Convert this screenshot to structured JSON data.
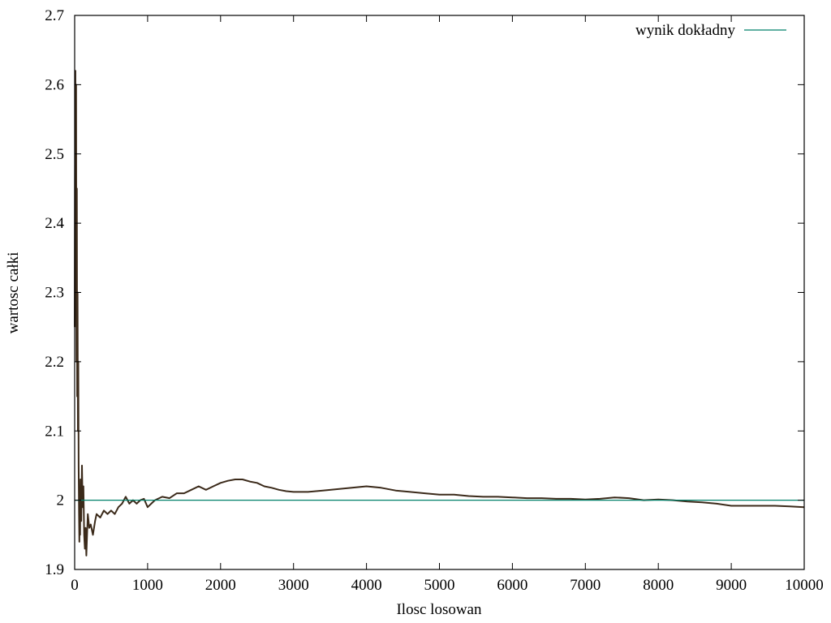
{
  "chart_data": {
    "type": "line",
    "title": "",
    "xlabel": "Ilosc losowan",
    "ylabel": "wartosc całki",
    "xlim": [
      0,
      10000
    ],
    "ylim": [
      1.9,
      2.7
    ],
    "grid": false,
    "legend_position": "top-right",
    "x_ticks": [
      0,
      1000,
      2000,
      3000,
      4000,
      5000,
      6000,
      7000,
      8000,
      9000,
      10000
    ],
    "x_tick_labels": [
      "0",
      "1000",
      "2000",
      "3000",
      "4000",
      "5000",
      "6000",
      "7000",
      "8000",
      "9000",
      "10000"
    ],
    "y_ticks": [
      1.9,
      2.0,
      2.1,
      2.2,
      2.3,
      2.4,
      2.5,
      2.6,
      2.7
    ],
    "y_tick_labels": [
      "1.9",
      "2",
      "2.1",
      "2.2",
      "2.3",
      "2.4",
      "2.5",
      "2.6",
      "2.7"
    ],
    "series": [
      {
        "color": "#3b2a1a",
        "points": [
          [
            1,
            2.25
          ],
          [
            5,
            2.45
          ],
          [
            10,
            2.62
          ],
          [
            15,
            2.35
          ],
          [
            20,
            2.6
          ],
          [
            25,
            2.2
          ],
          [
            30,
            2.45
          ],
          [
            35,
            2.15
          ],
          [
            40,
            2.3
          ],
          [
            45,
            2.1
          ],
          [
            50,
            2.2
          ],
          [
            55,
            2.05
          ],
          [
            60,
            1.98
          ],
          [
            65,
            1.94
          ],
          [
            70,
            2.0
          ],
          [
            75,
            1.95
          ],
          [
            80,
            2.03
          ],
          [
            90,
            1.97
          ],
          [
            100,
            2.05
          ],
          [
            110,
            1.99
          ],
          [
            120,
            2.02
          ],
          [
            130,
            1.95
          ],
          [
            140,
            1.93
          ],
          [
            150,
            1.96
          ],
          [
            160,
            1.92
          ],
          [
            170,
            1.95
          ],
          [
            180,
            1.98
          ],
          [
            200,
            1.96
          ],
          [
            220,
            1.965
          ],
          [
            250,
            1.95
          ],
          [
            280,
            1.97
          ],
          [
            300,
            1.98
          ],
          [
            350,
            1.975
          ],
          [
            400,
            1.985
          ],
          [
            450,
            1.98
          ],
          [
            500,
            1.985
          ],
          [
            550,
            1.98
          ],
          [
            600,
            1.99
          ],
          [
            650,
            1.995
          ],
          [
            700,
            2.005
          ],
          [
            750,
            1.995
          ],
          [
            800,
            2.0
          ],
          [
            850,
            1.995
          ],
          [
            900,
            2.0
          ],
          [
            950,
            2.002
          ],
          [
            1000,
            1.99
          ],
          [
            1050,
            1.995
          ],
          [
            1100,
            2.0
          ],
          [
            1200,
            2.005
          ],
          [
            1300,
            2.003
          ],
          [
            1400,
            2.01
          ],
          [
            1500,
            2.01
          ],
          [
            1600,
            2.015
          ],
          [
            1700,
            2.02
          ],
          [
            1800,
            2.015
          ],
          [
            1900,
            2.02
          ],
          [
            2000,
            2.025
          ],
          [
            2100,
            2.028
          ],
          [
            2200,
            2.03
          ],
          [
            2300,
            2.03
          ],
          [
            2400,
            2.027
          ],
          [
            2500,
            2.025
          ],
          [
            2600,
            2.02
          ],
          [
            2700,
            2.018
          ],
          [
            2800,
            2.015
          ],
          [
            2900,
            2.013
          ],
          [
            3000,
            2.012
          ],
          [
            3200,
            2.012
          ],
          [
            3400,
            2.014
          ],
          [
            3600,
            2.016
          ],
          [
            3800,
            2.018
          ],
          [
            4000,
            2.02
          ],
          [
            4200,
            2.018
          ],
          [
            4400,
            2.014
          ],
          [
            4600,
            2.012
          ],
          [
            4800,
            2.01
          ],
          [
            5000,
            2.008
          ],
          [
            5200,
            2.008
          ],
          [
            5400,
            2.006
          ],
          [
            5600,
            2.005
          ],
          [
            5800,
            2.005
          ],
          [
            6000,
            2.004
          ],
          [
            6200,
            2.003
          ],
          [
            6400,
            2.003
          ],
          [
            6600,
            2.002
          ],
          [
            6800,
            2.002
          ],
          [
            7000,
            2.001
          ],
          [
            7200,
            2.002
          ],
          [
            7400,
            2.004
          ],
          [
            7600,
            2.003
          ],
          [
            7800,
            2.0
          ],
          [
            8000,
            2.001
          ],
          [
            8200,
            2.0
          ],
          [
            8400,
            1.998
          ],
          [
            8600,
            1.997
          ],
          [
            8800,
            1.995
          ],
          [
            9000,
            1.992
          ],
          [
            9200,
            1.992
          ],
          [
            9400,
            1.992
          ],
          [
            9600,
            1.992
          ],
          [
            9800,
            1.991
          ],
          [
            10000,
            1.99
          ]
        ]
      },
      {
        "name": "wynik dokładny",
        "color": "#00806a",
        "points": [
          [
            0,
            2.0
          ],
          [
            10000,
            2.0
          ]
        ]
      }
    ]
  }
}
